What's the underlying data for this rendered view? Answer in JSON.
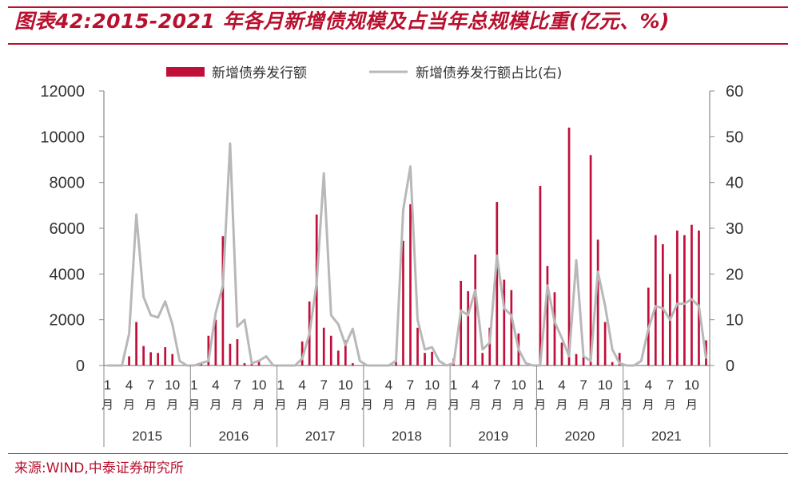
{
  "title": "图表42:2015-2021 年各月新增债规模及占当年总规模比重(亿元、%)",
  "source": "来源:WIND,中泰证券研究所",
  "colors": {
    "bar": "#c0103a",
    "line": "#b8b8b8",
    "accent": "#b8102e",
    "axis": "#888888",
    "text": "#333333"
  },
  "chart_data": {
    "type": "bar",
    "title": "图表42:2015-2021 年各月新增债规模及占当年总规模比重(亿元、%)",
    "legend": [
      {
        "name": "新增债券发行额",
        "kind": "bar"
      },
      {
        "name": "新增债券发行额占比(右)",
        "kind": "line"
      }
    ],
    "legend_position": "top-center",
    "y_left": {
      "min": 0,
      "max": 12000,
      "ticks": [
        "0",
        "2000",
        "4000",
        "6000",
        "8000",
        "10000",
        "12000"
      ]
    },
    "y_right": {
      "min": 0,
      "max": 60,
      "ticks": [
        "0",
        "10",
        "20",
        "30",
        "40",
        "50",
        "60"
      ]
    },
    "month_ticks": [
      "1",
      "4",
      "7",
      "10"
    ],
    "month_unit": "月",
    "years": [
      "2015",
      "2016",
      "2017",
      "2018",
      "2019",
      "2020",
      "2021"
    ],
    "series": [
      {
        "name": "新增债券发行额",
        "axis": "left",
        "values": [
          [
            0,
            0,
            0,
            400,
            1900,
            850,
            580,
            550,
            800,
            500,
            0,
            0
          ],
          [
            0,
            100,
            1300,
            2000,
            5650,
            950,
            1150,
            100,
            150,
            250,
            0,
            0
          ],
          [
            0,
            0,
            0,
            1050,
            2800,
            6600,
            1650,
            1300,
            650,
            1100,
            100,
            0
          ],
          [
            0,
            0,
            0,
            0,
            200,
            5450,
            7050,
            1650,
            550,
            600,
            0,
            0
          ],
          [
            300,
            3700,
            3250,
            4850,
            550,
            1650,
            7150,
            3750,
            3300,
            1400,
            0,
            0
          ],
          [
            7850,
            4350,
            3200,
            1000,
            10400,
            500,
            400,
            9200,
            5500,
            1900,
            150,
            550
          ],
          [
            0,
            0,
            0,
            3400,
            5700,
            5300,
            4000,
            5900,
            5700,
            6150,
            5900,
            1100
          ]
        ]
      },
      {
        "name": "新增债券发行额占比(右)",
        "axis": "right",
        "values": [
          [
            0,
            0,
            0,
            7,
            33,
            15,
            11,
            10.5,
            14,
            9,
            1,
            0
          ],
          [
            0,
            0.5,
            1,
            11.5,
            17.5,
            48.5,
            8.5,
            10,
            0.5,
            1,
            2,
            0
          ],
          [
            0,
            0,
            0,
            1.5,
            7,
            18,
            42,
            11,
            9,
            4.5,
            8,
            1
          ],
          [
            0,
            0,
            0,
            0,
            1,
            34,
            43.5,
            10,
            3.5,
            4,
            1,
            0
          ],
          [
            0.5,
            12,
            11,
            16.5,
            3.5,
            5,
            24,
            12.5,
            11,
            3.5,
            0.5,
            0
          ],
          [
            0,
            17.5,
            9.5,
            6,
            2,
            23,
            2,
            1,
            20.5,
            13,
            3.5,
            0.5
          ],
          [
            0,
            0,
            1,
            8,
            13,
            12.5,
            10,
            13.5,
            13.5,
            14.5,
            13,
            1.5
          ]
        ]
      }
    ]
  }
}
